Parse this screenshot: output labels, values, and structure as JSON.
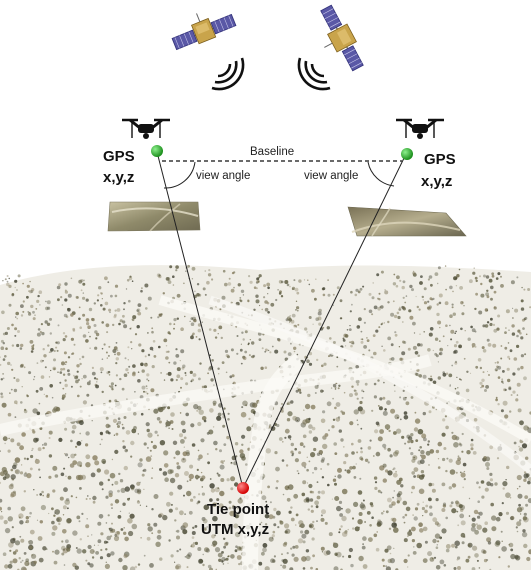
{
  "labels": {
    "gps_left": "GPS",
    "xyz_left": "x,y,z",
    "gps_right": "GPS",
    "xyz_right": "x,y,z",
    "baseline": "Baseline",
    "view_angle_left": "view angle",
    "view_angle_right": "view angle",
    "tie_point_title": "Tie point",
    "tie_point_coords": "UTM x,y,z"
  },
  "icons": {
    "satellite_left": "satellite-icon",
    "satellite_right": "satellite-icon",
    "drone_left": "drone-icon",
    "drone_right": "drone-icon",
    "signal_left": "signal-waves-icon",
    "signal_right": "signal-waves-icon"
  },
  "colors": {
    "gps_marker": "#22aa22",
    "tie_point_marker": "#ee1111",
    "ground_light": "#f2f0ea",
    "ground_dark": "#8a7a5a",
    "vegetation": "#5a5a3c",
    "line": "#222222"
  }
}
